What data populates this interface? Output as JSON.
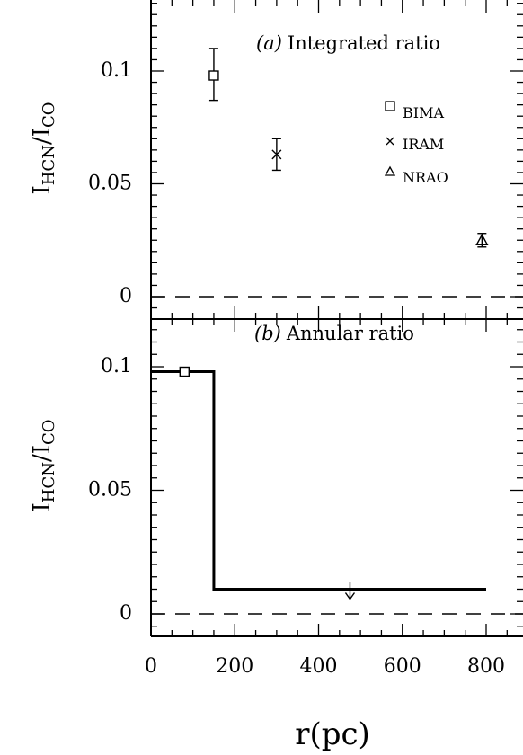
{
  "chart_data": [
    {
      "type": "scatter",
      "panel_label": "(a)",
      "annotation": "Integrated ratio",
      "ylabel": {
        "main": "I",
        "num_sub": "HCN",
        "den": "I",
        "den_sub": "CO"
      },
      "xlim": [
        0,
        880
      ],
      "ylim": [
        -0.01,
        0.13
      ],
      "ytick_labels": [
        "0",
        "0.05",
        "0.1"
      ],
      "reference_line": {
        "y": 0,
        "style": "dashed"
      },
      "legend_position": "right",
      "series": [
        {
          "name": "BIMA",
          "marker": "square",
          "x": 150,
          "y": 0.098,
          "yerr": [
            0.087,
            0.11
          ]
        },
        {
          "name": "IRAM",
          "marker": "x",
          "x": 300,
          "y": 0.063,
          "yerr": [
            0.056,
            0.07
          ]
        },
        {
          "name": "NRAO",
          "marker": "triangle",
          "x": 790,
          "y": 0.025,
          "yerr": [
            0.022,
            0.028
          ]
        }
      ]
    },
    {
      "type": "line",
      "panel_label": "(b)",
      "annotation": "Annular ratio",
      "ylabel": {
        "main": "I",
        "num_sub": "HCN",
        "den": "I",
        "den_sub": "CO"
      },
      "xlabel": "r(pc)",
      "xlim": [
        0,
        880
      ],
      "ylim": [
        -0.01,
        0.13
      ],
      "ytick_labels": [
        "0",
        "0.05",
        "0.1"
      ],
      "xtick_labels": [
        "0",
        "200",
        "400",
        "600",
        "800"
      ],
      "reference_line": {
        "y": 0,
        "style": "dashed"
      },
      "step": {
        "x": [
          0,
          150,
          150,
          800
        ],
        "y": [
          0.098,
          0.098,
          0.01,
          0.01
        ]
      },
      "marker_square": {
        "x": 80,
        "y": 0.098
      },
      "upper_limit_arrow": {
        "x": 475,
        "y": 0.01
      }
    }
  ]
}
